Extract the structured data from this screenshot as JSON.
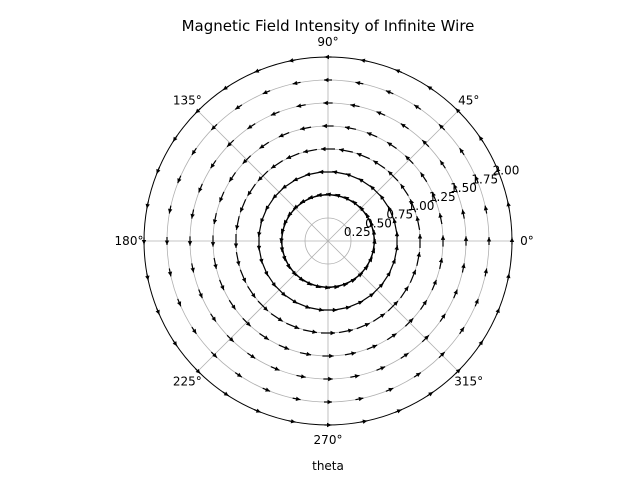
{
  "chart_data": {
    "type": "quiver",
    "projection": "polar",
    "title": "Magnetic Field Intensity of Infinite Wire",
    "xlabel": "theta",
    "ylabel": "",
    "theta_tick_labels": [
      "0°",
      "45°",
      "90°",
      "135°",
      "180°",
      "225°",
      "270°",
      "315°"
    ],
    "theta_ticks_deg": [
      0,
      45,
      90,
      135,
      180,
      225,
      270,
      315
    ],
    "r_tick_labels": [
      "0.25",
      "0.50",
      "0.75",
      "1.00",
      "1.25",
      "1.50",
      "1.75",
      "2.00"
    ],
    "r_ticks": [
      0.25,
      0.5,
      0.75,
      1.0,
      1.25,
      1.5,
      1.75,
      2.0
    ],
    "rlim": [
      0,
      2.0
    ],
    "r_label_angle_deg": 22.5,
    "grid": true,
    "field": {
      "description_visible": "tangential (azimuthal) arrows around the origin, longer near the center",
      "r_values": [
        0.5,
        0.75,
        1.0,
        1.25,
        1.5,
        1.75,
        2.0
      ],
      "theta_count": 32,
      "direction": "counterclockwise",
      "magnitude_law": "1/r"
    },
    "colors": {
      "arrow": "#000000",
      "grid": "#b0b0b0",
      "axes": "#000000"
    }
  }
}
